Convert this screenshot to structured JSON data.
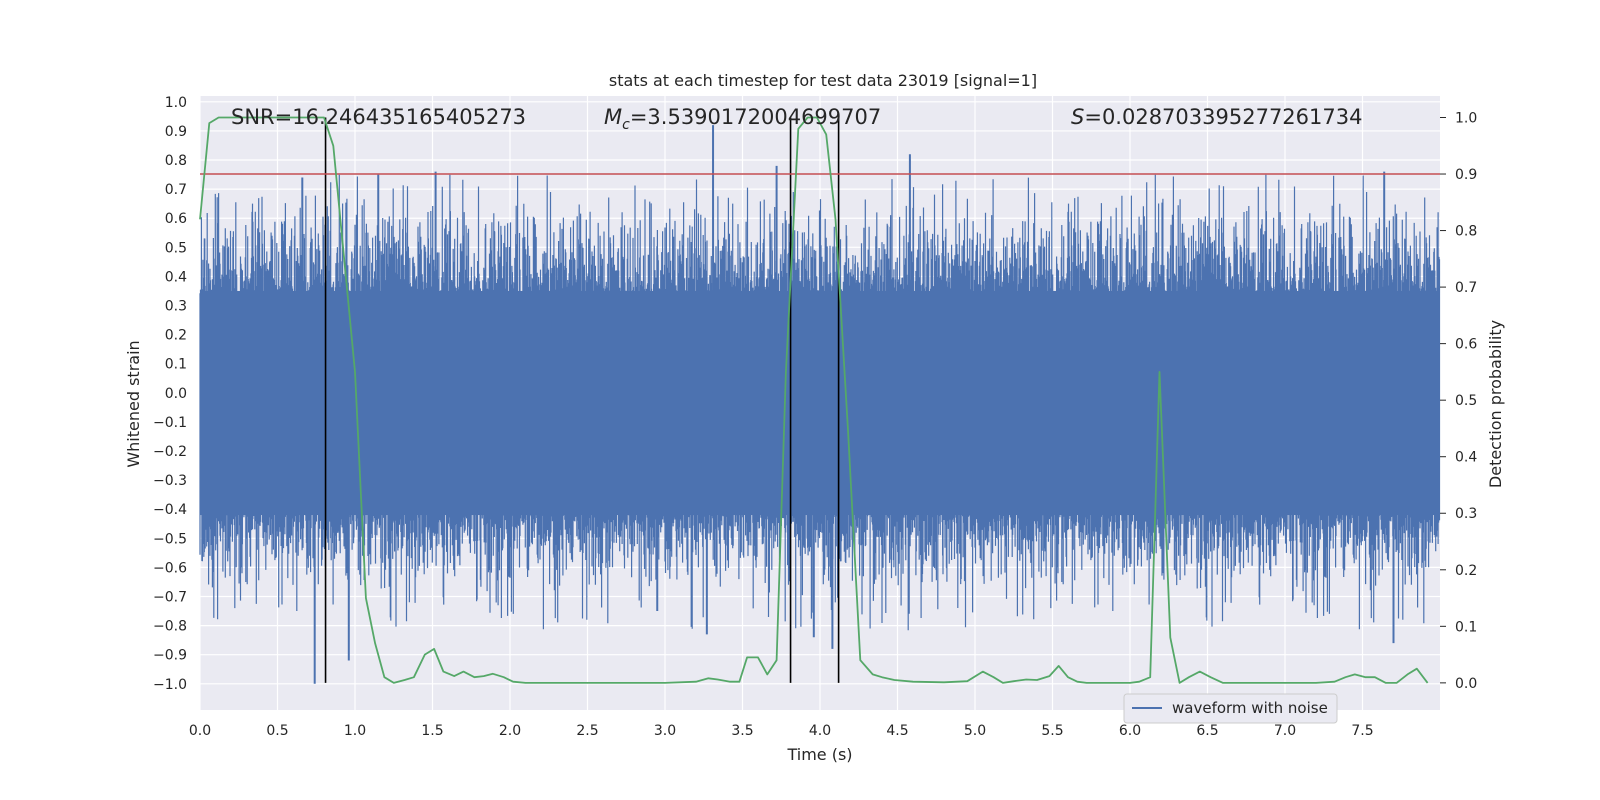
{
  "chart_data": {
    "type": "line",
    "title": "stats at each timestep for test data 23019 [signal=1]",
    "xlabel": "Time (s)",
    "ylabel_left": "Whitened strain",
    "ylabel_right": "Detection probability",
    "xlim": [
      0.0,
      8.0
    ],
    "ylim_left": [
      -1.09,
      1.02
    ],
    "ylim_right": [
      -0.048,
      1.038
    ],
    "xticks": [
      "0.0",
      "0.5",
      "1.0",
      "1.5",
      "2.0",
      "2.5",
      "3.0",
      "3.5",
      "4.0",
      "4.5",
      "5.0",
      "5.5",
      "6.0",
      "6.5",
      "7.0",
      "7.5"
    ],
    "xtick_values": [
      0.0,
      0.5,
      1.0,
      1.5,
      2.0,
      2.5,
      3.0,
      3.5,
      4.0,
      4.5,
      5.0,
      5.5,
      6.0,
      6.5,
      7.0,
      7.5
    ],
    "yticks_left": [
      "1.0",
      "0.9",
      "0.8",
      "0.7",
      "0.6",
      "0.5",
      "0.4",
      "0.3",
      "0.2",
      "0.1",
      "0.0",
      "−0.1",
      "−0.2",
      "−0.3",
      "−0.4",
      "−0.5",
      "−0.6",
      "−0.7",
      "−0.8",
      "−0.9",
      "−1.0"
    ],
    "ytick_values_left": [
      1.0,
      0.9,
      0.8,
      0.7,
      0.6,
      0.5,
      0.4,
      0.3,
      0.2,
      0.1,
      0.0,
      -0.1,
      -0.2,
      -0.3,
      -0.4,
      -0.5,
      -0.6,
      -0.7,
      -0.8,
      -0.9,
      -1.0
    ],
    "yticks_right": [
      "1.0",
      "0.9",
      "0.8",
      "0.7",
      "0.6",
      "0.5",
      "0.4",
      "0.3",
      "0.2",
      "0.1",
      "0.0"
    ],
    "ytick_values_right": [
      1.0,
      0.9,
      0.8,
      0.7,
      0.6,
      0.5,
      0.4,
      0.3,
      0.2,
      0.1,
      0.0
    ],
    "annotations": [
      {
        "text": "SNR=16.246435165405273",
        "x": 0.2
      },
      {
        "text": "=3.5390172004699707",
        "symbol": "M",
        "subscript": "c",
        "x": 2.6
      },
      {
        "text": "=0.028703395277261734",
        "symbol": "S",
        "x": 5.7
      }
    ],
    "legend": {
      "location": "lower-right",
      "entries": [
        "waveform with noise"
      ]
    },
    "grid": true,
    "colors": {
      "waveform": "#4c72b0",
      "probability": "#55a868",
      "threshold": "#c44e52",
      "markers": "#000000",
      "background": "#eaeaf2"
    },
    "threshold_right": 0.9,
    "vertical_markers_x": [
      0.81,
      3.81,
      4.12
    ],
    "waveform": {
      "description_level": "dense noise samples",
      "typical_band": [
        -0.42,
        0.35
      ],
      "extreme_peaks": [
        {
          "x": 0.74,
          "y": -1.0
        },
        {
          "x": 0.96,
          "y": -0.92
        },
        {
          "x": 1.15,
          "y": 0.75
        },
        {
          "x": 1.52,
          "y": 0.76
        },
        {
          "x": 2.95,
          "y": -0.75
        },
        {
          "x": 3.27,
          "y": -0.83
        },
        {
          "x": 3.31,
          "y": 0.92
        },
        {
          "x": 3.72,
          "y": 0.78
        },
        {
          "x": 3.96,
          "y": -0.84
        },
        {
          "x": 4.08,
          "y": -0.88
        },
        {
          "x": 4.58,
          "y": 0.82
        },
        {
          "x": 7.64,
          "y": 0.76
        },
        {
          "x": 7.7,
          "y": -0.86
        },
        {
          "x": 0.66,
          "y": 0.74
        }
      ]
    },
    "probability": {
      "x": [
        0.0,
        0.06,
        0.12,
        0.5,
        0.7,
        0.8,
        0.86,
        1.0,
        1.07,
        1.13,
        1.19,
        1.25,
        1.32,
        1.38,
        1.45,
        1.51,
        1.57,
        1.64,
        1.7,
        1.77,
        1.83,
        1.89,
        1.96,
        2.02,
        2.1,
        2.3,
        2.5,
        2.8,
        3.0,
        3.2,
        3.28,
        3.34,
        3.42,
        3.48,
        3.53,
        3.6,
        3.66,
        3.72,
        3.78,
        3.86,
        3.92,
        3.98,
        4.04,
        4.1,
        4.18,
        4.26,
        4.34,
        4.4,
        4.48,
        4.6,
        4.8,
        4.95,
        5.05,
        5.12,
        5.18,
        5.25,
        5.33,
        5.4,
        5.48,
        5.54,
        5.6,
        5.66,
        5.72,
        5.8,
        5.9,
        6.0,
        6.06,
        6.13,
        6.19,
        6.26,
        6.32,
        6.38,
        6.45,
        6.52,
        6.6,
        6.8,
        7.0,
        7.2,
        7.32,
        7.39,
        7.45,
        7.52,
        7.58,
        7.65,
        7.72,
        7.79,
        7.85,
        7.92
      ],
      "y": [
        0.82,
        0.99,
        1.0,
        1.0,
        1.0,
        1.0,
        0.95,
        0.55,
        0.15,
        0.07,
        0.01,
        0.0,
        0.005,
        0.01,
        0.05,
        0.06,
        0.02,
        0.012,
        0.02,
        0.01,
        0.012,
        0.016,
        0.01,
        0.002,
        0.0,
        0.0,
        0.0,
        0.0,
        0.0,
        0.002,
        0.008,
        0.006,
        0.002,
        0.002,
        0.045,
        0.045,
        0.015,
        0.04,
        0.55,
        0.98,
        1.0,
        1.0,
        0.97,
        0.82,
        0.45,
        0.04,
        0.015,
        0.01,
        0.005,
        0.002,
        0.001,
        0.003,
        0.02,
        0.01,
        0.0,
        0.003,
        0.006,
        0.005,
        0.012,
        0.03,
        0.01,
        0.002,
        0.0,
        0.0,
        0.0,
        0.0,
        0.002,
        0.01,
        0.55,
        0.08,
        0.0,
        0.01,
        0.02,
        0.01,
        0.0,
        0.0,
        0.0,
        0.0,
        0.002,
        0.01,
        0.015,
        0.01,
        0.01,
        0.0,
        0.0,
        0.015,
        0.025,
        0.0
      ]
    }
  }
}
